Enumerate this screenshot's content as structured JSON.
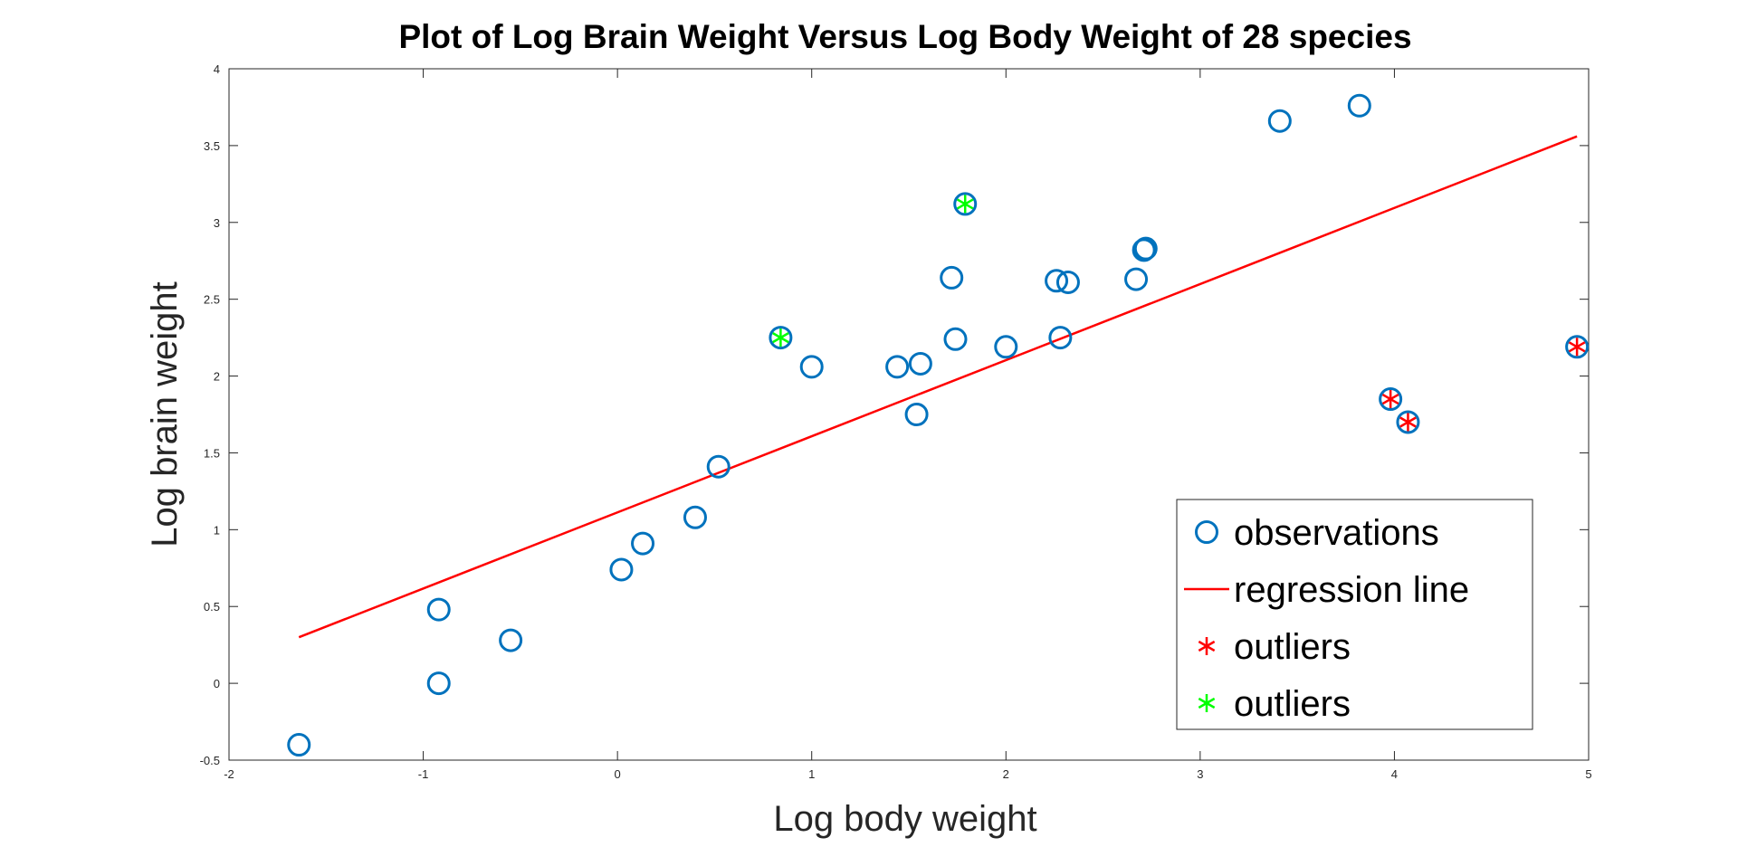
{
  "chart_data": {
    "type": "scatter",
    "title": "Plot of Log Brain Weight Versus Log Body Weight of 28 species",
    "xlabel": "Log body weight",
    "ylabel": "Log brain weight",
    "xlim": [
      -2,
      5
    ],
    "ylim": [
      -0.5,
      4
    ],
    "xticks": [
      "-2",
      "-1",
      "0",
      "1",
      "2",
      "3",
      "4",
      "5"
    ],
    "yticks": [
      "-0.5",
      "0",
      "0.5",
      "1",
      "1.5",
      "2",
      "2.5",
      "3",
      "3.5",
      "4"
    ],
    "grid": false,
    "legend_position": "bottom-right",
    "series": [
      {
        "name": "observations",
        "marker": "circle",
        "color": "#0072BD",
        "points": [
          {
            "x": -1.64,
            "y": -0.4
          },
          {
            "x": -0.92,
            "y": 0.48
          },
          {
            "x": -0.92,
            "y": 0.0
          },
          {
            "x": -0.55,
            "y": 0.28
          },
          {
            "x": 0.02,
            "y": 0.74
          },
          {
            "x": 0.13,
            "y": 0.91
          },
          {
            "x": 0.4,
            "y": 1.08
          },
          {
            "x": 0.52,
            "y": 1.41
          },
          {
            "x": 0.84,
            "y": 2.25
          },
          {
            "x": 1.0,
            "y": 2.06
          },
          {
            "x": 1.44,
            "y": 2.06
          },
          {
            "x": 1.56,
            "y": 2.08
          },
          {
            "x": 1.54,
            "y": 1.75
          },
          {
            "x": 1.72,
            "y": 2.64
          },
          {
            "x": 1.74,
            "y": 2.24
          },
          {
            "x": 1.79,
            "y": 3.12
          },
          {
            "x": 2.0,
            "y": 2.19
          },
          {
            "x": 2.26,
            "y": 2.62
          },
          {
            "x": 2.32,
            "y": 2.61
          },
          {
            "x": 2.28,
            "y": 2.25
          },
          {
            "x": 2.67,
            "y": 2.63
          },
          {
            "x": 2.71,
            "y": 2.82
          },
          {
            "x": 2.72,
            "y": 2.83
          },
          {
            "x": 3.41,
            "y": 3.66
          },
          {
            "x": 3.82,
            "y": 3.76
          },
          {
            "x": 3.98,
            "y": 1.85
          },
          {
            "x": 4.07,
            "y": 1.7
          },
          {
            "x": 4.94,
            "y": 2.19
          }
        ]
      },
      {
        "name": "regression line",
        "type": "line",
        "color": "#FF0000",
        "points": [
          {
            "x": -1.64,
            "y": 0.3
          },
          {
            "x": 4.94,
            "y": 3.56
          }
        ]
      },
      {
        "name": "outliers",
        "marker": "asterisk",
        "color": "#FF0000",
        "points": [
          {
            "x": 3.98,
            "y": 1.85
          },
          {
            "x": 4.07,
            "y": 1.7
          },
          {
            "x": 4.94,
            "y": 2.19
          }
        ]
      },
      {
        "name": "outliers",
        "marker": "asterisk",
        "color": "#00FF00",
        "points": [
          {
            "x": 0.84,
            "y": 2.25
          },
          {
            "x": 1.79,
            "y": 3.12
          }
        ]
      }
    ]
  }
}
